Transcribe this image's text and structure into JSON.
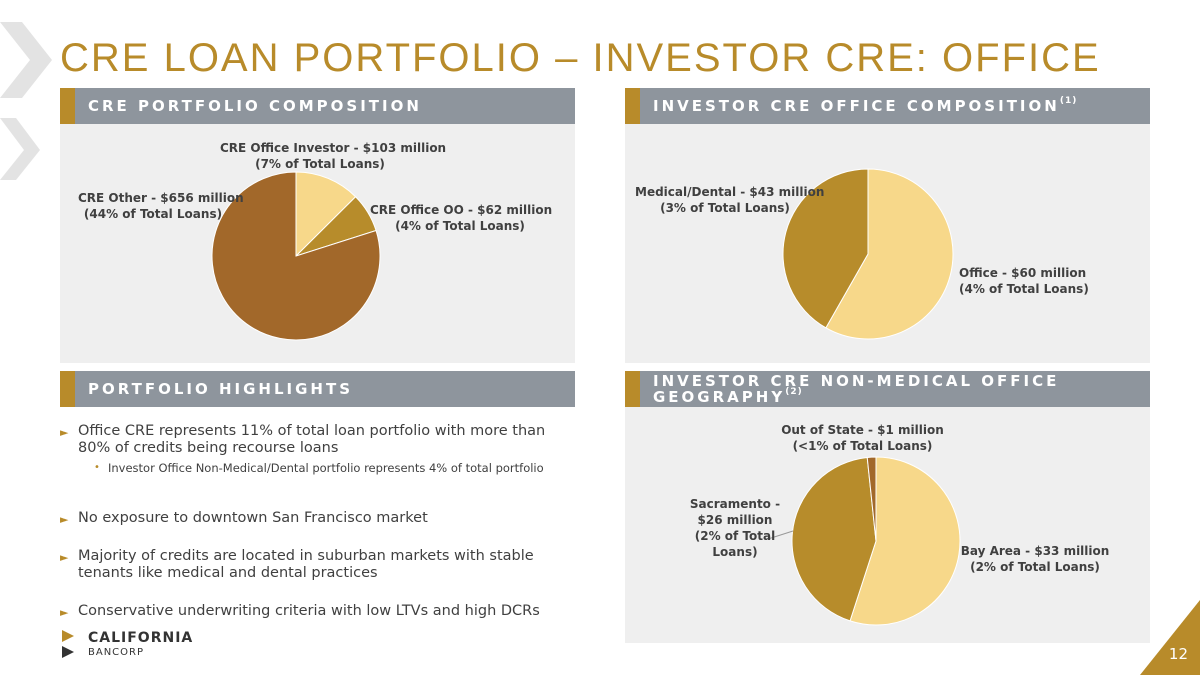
{
  "title": "CRE LOAN PORTFOLIO – INVESTOR CRE: OFFICE",
  "colors": {
    "gold": "#B88B2A",
    "header_gray": "#8E959D",
    "panel_bg": "#EFEFEF",
    "light_yellow": "#F7D88A",
    "mid_gold": "#B78C2B",
    "brown": "#A2682A"
  },
  "panels": {
    "portfolio_composition": {
      "title": "CRE PORTFOLIO COMPOSITION"
    },
    "office_composition": {
      "title": "INVESTOR CRE OFFICE COMPOSITION",
      "footnote": "(1)"
    },
    "highlights": {
      "title": "PORTFOLIO HIGHLIGHTS"
    },
    "geography": {
      "title_line1": "INVESTOR CRE NON-MEDICAL OFFICE",
      "title_line2": "GEOGRAPHY",
      "footnote": "(2)"
    }
  },
  "chart_data": [
    {
      "type": "pie",
      "title": "CRE PORTFOLIO COMPOSITION",
      "slices": [
        {
          "name": "CRE Office Investor",
          "value": 103,
          "label_line1": "CRE Office Investor - $103 million",
          "label_line2": "(7% of Total Loans)",
          "color": "#F7D88A"
        },
        {
          "name": "CRE Office OO",
          "value": 62,
          "label_line1": "CRE Office OO - $62 million",
          "label_line2": "(4% of Total Loans)",
          "color": "#B78C2B"
        },
        {
          "name": "CRE Other",
          "value": 656,
          "label_line1": "CRE Other - $656 million",
          "label_line2": "(44% of Total Loans)",
          "color": "#A2682A"
        }
      ]
    },
    {
      "type": "pie",
      "title": "INVESTOR CRE OFFICE COMPOSITION",
      "slices": [
        {
          "name": "Office",
          "value": 60,
          "label_line1": "Office - $60 million",
          "label_line2": "(4% of Total Loans)",
          "color": "#F7D88A"
        },
        {
          "name": "Medical/Dental",
          "value": 43,
          "label_line1": "Medical/Dental - $43 million",
          "label_line2": "(3% of Total Loans)",
          "color": "#B78C2B"
        }
      ]
    },
    {
      "type": "pie",
      "title": "INVESTOR CRE NON-MEDICAL OFFICE GEOGRAPHY",
      "slices": [
        {
          "name": "Bay Area",
          "value": 33,
          "label_lines": [
            "Bay Area - $33 million",
            "(2% of Total Loans)"
          ],
          "color": "#F7D88A"
        },
        {
          "name": "Sacramento",
          "value": 26,
          "label_lines": [
            "Sacramento -",
            "$26 million",
            "(2% of Total",
            "Loans)"
          ],
          "color": "#B78C2B"
        },
        {
          "name": "Out of State",
          "value": 1,
          "label_lines": [
            "Out of State - $1 million",
            "(<1% of Total Loans)"
          ],
          "color": "#A2682A"
        }
      ]
    }
  ],
  "highlights": {
    "items": [
      {
        "text": "Office CRE represents 11% of total loan portfolio with more than 80% of credits being recourse loans"
      },
      {
        "text": "No exposure to downtown San Francisco market"
      },
      {
        "text": "Majority of credits are located in suburban markets with stable tenants like medical and dental practices"
      },
      {
        "text": "Conservative underwriting criteria with low LTVs and high DCRs"
      }
    ],
    "sub_item": "Investor Office Non-Medical/Dental portfolio represents 4% of total portfolio",
    "bullet": "►",
    "sub_bullet": "•"
  },
  "logo": {
    "name": "CALIFORNIA",
    "sub": "BANCORP"
  },
  "page_number": "12"
}
